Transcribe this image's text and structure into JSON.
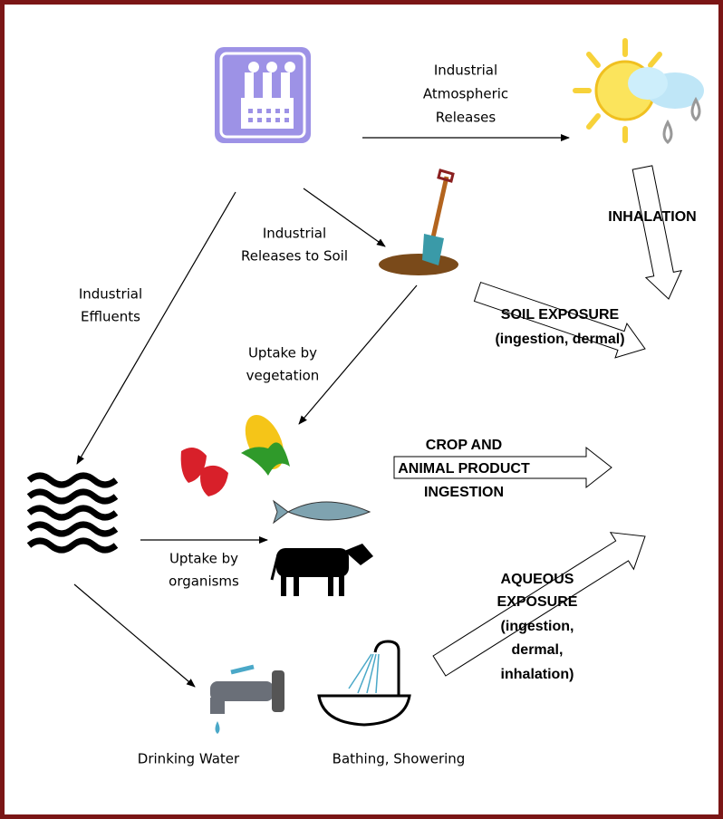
{
  "nodes": [
    {
      "lines": [
        "Industrial",
        "Atmospheric",
        "Releases"
      ]
    },
    {
      "lines": [
        "INHALATION"
      ]
    },
    {
      "lines": [
        "Industrial",
        "Releases to Soil"
      ]
    },
    {
      "lines": [
        "Industrial",
        "Effluents"
      ]
    },
    {
      "lines": [
        "SOIL EXPOSURE",
        "(ingestion, dermal)"
      ]
    },
    {
      "lines": [
        "Uptake by",
        "vegetation"
      ]
    },
    {
      "lines": [
        "CROP AND",
        "ANIMAL PRODUCT",
        "INGESTION"
      ]
    },
    {
      "lines": [
        "Uptake by",
        "organisms"
      ]
    },
    {
      "lines": [
        "AQUEOUS",
        "EXPOSURE",
        "(ingestion,",
        "dermal,",
        "inhalation)"
      ]
    },
    {
      "lines": [
        "Drinking Water"
      ]
    },
    {
      "lines": [
        "Bathing, Showering"
      ]
    }
  ]
}
